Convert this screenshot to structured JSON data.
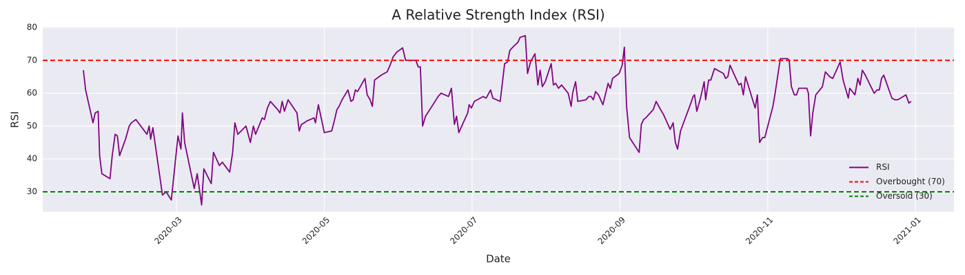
{
  "chart_data": {
    "type": "line",
    "title": "A Relative Strength Index (RSI)",
    "x_label": "Date",
    "y_label": "RSI",
    "xlim": [
      1.19,
      13.52
    ],
    "ylim": [
      23.93,
      80.2
    ],
    "xticks": [
      {
        "value": 3,
        "label": "2020-03"
      },
      {
        "value": 5,
        "label": "2020-05"
      },
      {
        "value": 7,
        "label": "2020-07"
      },
      {
        "value": 9,
        "label": "2020-09"
      },
      {
        "value": 11,
        "label": "2020-11"
      },
      {
        "value": 13,
        "label": "2021-01"
      }
    ],
    "yticks": [
      30,
      40,
      50,
      60,
      70,
      80
    ],
    "grid": true,
    "legend": "lower right",
    "x": [
      1.74,
      1.77,
      1.87,
      1.9,
      1.94,
      1.96,
      1.99,
      2.1,
      2.13,
      2.17,
      2.2,
      2.23,
      2.31,
      2.36,
      2.39,
      2.45,
      2.6,
      2.63,
      2.65,
      2.68,
      2.81,
      2.86,
      2.93,
      3.02,
      3.06,
      3.08,
      3.11,
      3.24,
      3.28,
      3.34,
      3.37,
      3.47,
      3.5,
      3.54,
      3.58,
      3.62,
      3.72,
      3.76,
      3.79,
      3.83,
      3.94,
      4.0,
      4.04,
      4.07,
      4.16,
      4.19,
      4.23,
      4.27,
      4.37,
      4.4,
      4.43,
      4.46,
      4.51,
      4.63,
      4.66,
      4.69,
      4.73,
      4.76,
      4.86,
      4.88,
      4.92,
      5.0,
      5.1,
      5.14,
      5.17,
      5.2,
      5.24,
      5.32,
      5.36,
      5.39,
      5.42,
      5.45,
      5.55,
      5.58,
      5.62,
      5.65,
      5.68,
      5.77,
      5.81,
      5.85,
      5.89,
      5.93,
      5.98,
      6.06,
      6.1,
      6.24,
      6.27,
      6.3,
      6.33,
      6.37,
      6.47,
      6.54,
      6.58,
      6.68,
      6.72,
      6.76,
      6.79,
      6.82,
      6.94,
      6.96,
      6.99,
      7.03,
      7.15,
      7.19,
      7.25,
      7.28,
      7.38,
      7.44,
      7.48,
      7.51,
      7.55,
      7.62,
      7.65,
      7.72,
      7.75,
      7.79,
      7.85,
      7.89,
      7.92,
      7.95,
      7.99,
      8.07,
      8.1,
      8.13,
      8.17,
      8.21,
      8.3,
      8.34,
      8.36,
      8.4,
      8.43,
      8.54,
      8.58,
      8.61,
      8.64,
      8.67,
      8.71,
      8.77,
      8.84,
      8.87,
      8.9,
      8.99,
      9.03,
      9.06,
      9.09,
      9.13,
      9.26,
      9.29,
      9.32,
      9.35,
      9.45,
      9.49,
      9.55,
      9.59,
      9.65,
      9.68,
      9.72,
      9.75,
      9.78,
      9.82,
      9.96,
      9.99,
      10.01,
      10.04,
      10.09,
      10.14,
      10.16,
      10.2,
      10.23,
      10.28,
      10.4,
      10.43,
      10.46,
      10.49,
      10.61,
      10.64,
      10.67,
      10.7,
      10.83,
      10.86,
      10.89,
      10.93,
      10.96,
      11.07,
      11.1,
      11.17,
      11.27,
      11.29,
      11.32,
      11.36,
      11.39,
      11.42,
      11.53,
      11.55,
      11.58,
      11.61,
      11.65,
      11.74,
      11.78,
      11.84,
      11.88,
      11.98,
      12.02,
      12.09,
      12.11,
      12.18,
      12.22,
      12.25,
      12.28,
      12.32,
      12.44,
      12.48,
      12.51,
      12.54,
      12.57,
      12.68,
      12.72,
      12.76,
      12.87,
      12.91,
      12.94
    ],
    "series": [
      {
        "name": "RSI",
        "color": "#800080",
        "values": [
          67,
          61,
          51,
          54,
          54.5,
          41,
          35.5,
          34,
          41,
          47.5,
          47,
          41,
          46,
          50,
          51,
          52,
          47.5,
          50,
          46,
          49.5,
          29,
          30,
          27.5,
          47,
          43,
          54,
          45,
          31,
          35.5,
          26,
          37,
          32.5,
          42,
          40,
          38,
          39,
          36,
          42,
          51,
          47.5,
          50,
          45,
          50,
          47.5,
          52.5,
          52,
          55.5,
          57.5,
          55,
          54,
          57.5,
          54.5,
          58,
          54,
          48.5,
          50.5,
          51,
          51.5,
          52.5,
          51,
          56.5,
          48,
          48.5,
          52,
          55,
          56,
          58,
          61,
          57.5,
          58,
          61,
          60.5,
          64.5,
          59.5,
          58,
          56,
          64,
          65.5,
          66,
          66.5,
          68.5,
          71,
          72.5,
          73.8,
          70,
          70,
          68,
          68,
          50,
          53,
          56.5,
          59,
          60,
          59,
          61.5,
          50.5,
          53,
          48,
          54,
          56.5,
          55.5,
          57.5,
          59,
          58.5,
          61,
          58.5,
          57.5,
          69,
          69.5,
          73,
          74,
          75.5,
          77,
          77.5,
          66,
          69.5,
          72,
          62.5,
          67,
          62,
          63.5,
          69,
          62.5,
          63,
          61.5,
          62.5,
          60,
          56,
          60,
          63.5,
          57.5,
          58,
          59,
          59,
          58,
          60.5,
          59.5,
          56.5,
          63,
          61.5,
          64.5,
          66,
          68.5,
          74,
          56,
          46.5,
          42,
          50.5,
          52,
          52.5,
          55,
          57.5,
          55,
          53.5,
          50.5,
          49,
          51,
          45,
          43,
          48.5,
          57,
          59,
          59.5,
          54.5,
          58.5,
          63.5,
          58,
          64,
          64,
          67.5,
          66,
          64.5,
          65,
          68.5,
          62.5,
          63,
          59.5,
          65,
          55.5,
          59.5,
          45,
          46.5,
          46.5,
          56,
          60,
          70.5,
          70.5,
          70,
          62,
          59.5,
          59.5,
          61.5,
          61.5,
          60,
          47,
          54,
          59.5,
          62,
          66.5,
          65,
          64.5,
          69.5,
          64,
          58.5,
          61.5,
          59.5,
          64.5,
          62.5,
          67,
          65.5,
          60,
          61,
          61,
          64.5,
          65.5,
          58.5,
          58,
          58,
          59.5,
          57,
          57.5
        ]
      }
    ],
    "hlines": [
      {
        "name": "Overbought (70)",
        "value": 70,
        "color": "#ff0000"
      },
      {
        "name": "Oversold (30)",
        "value": 30,
        "color": "#008000"
      }
    ]
  }
}
